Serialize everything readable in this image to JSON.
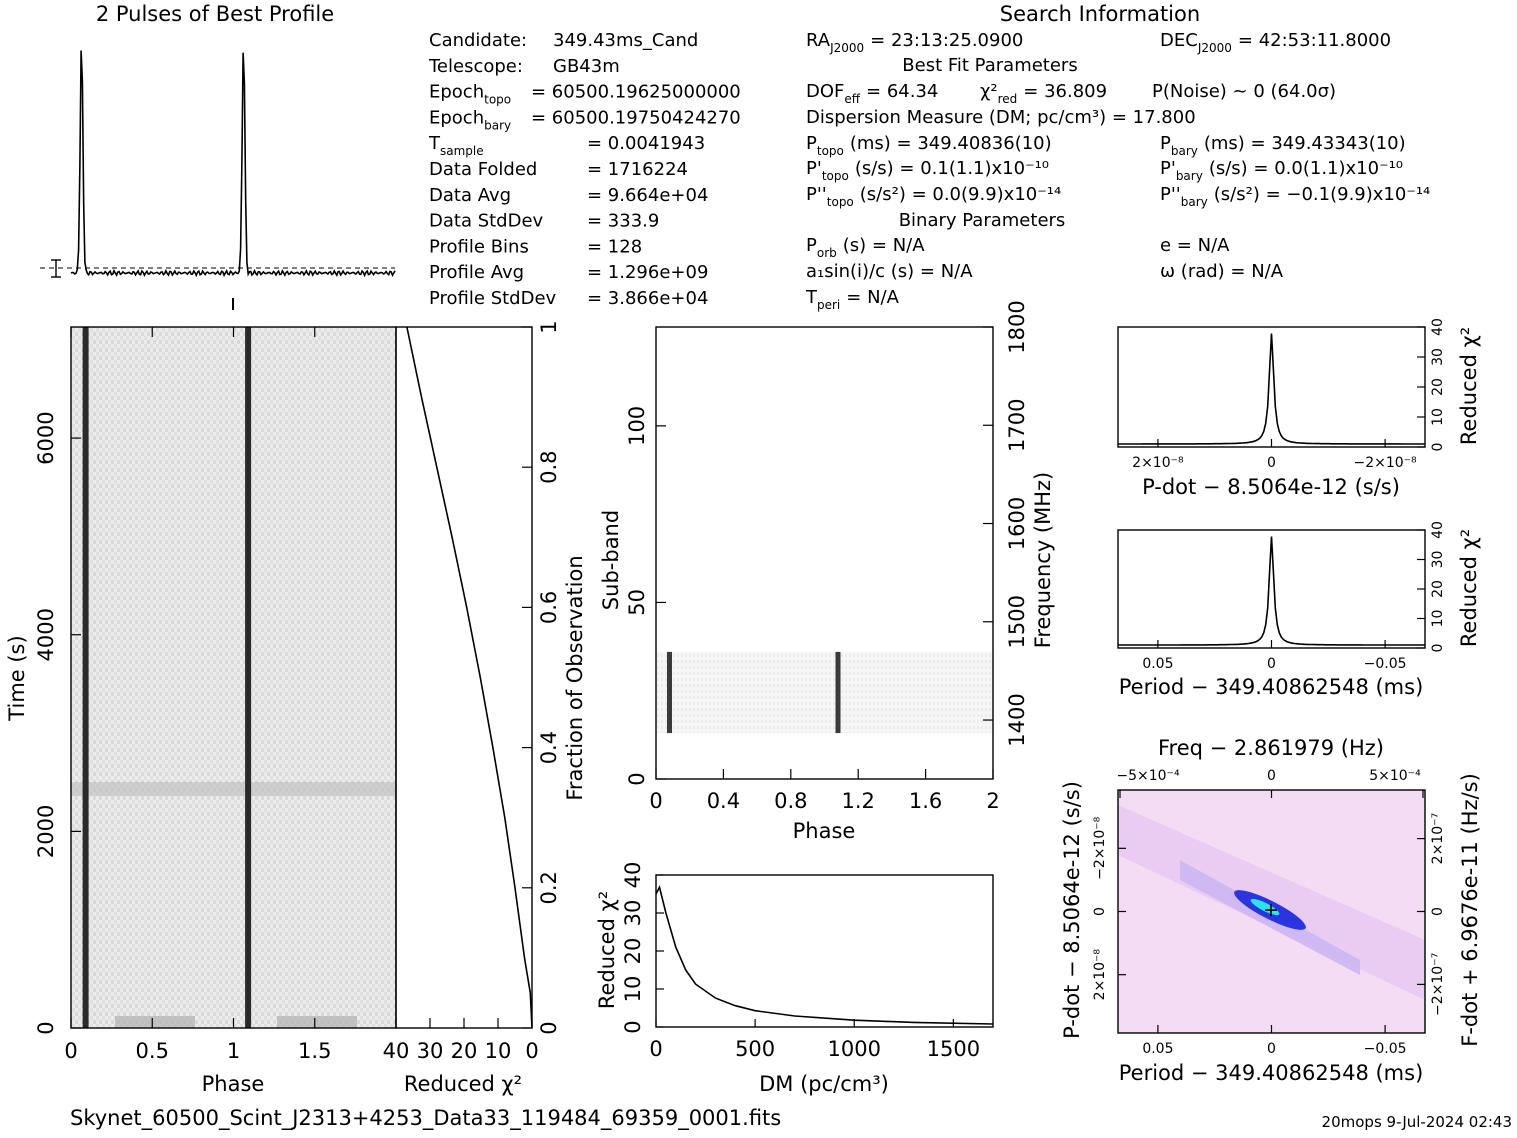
{
  "header": {
    "profile_title": "2 Pulses of Best Profile",
    "search_title": "Search Information",
    "filename": "Skynet_60500_Scint_J2313+4253_Data33_119484_69359_0001.fits",
    "footer_right": "20mops  9-Jul-2024 02:43"
  },
  "info_left": [
    {
      "label": "Candidate:",
      "value": "349.43ms_Cand"
    },
    {
      "label": "Telescope:",
      "value": "GB43m"
    },
    {
      "label": "Epoch",
      "sub": "topo",
      "value": "= 60500.19625000000"
    },
    {
      "label": "Epoch",
      "sub": "bary",
      "value": "= 60500.19750424270"
    },
    {
      "label": "T",
      "sub": "sample",
      "value": "=   0.0041943"
    },
    {
      "label": "Data Folded",
      "value": "=   1716224"
    },
    {
      "label": "Data Avg",
      "value": "=   9.664e+04"
    },
    {
      "label": "Data StdDev",
      "value": "=   333.9"
    },
    {
      "label": "Profile Bins",
      "value": "=   128"
    },
    {
      "label": "Profile Avg",
      "value": "=   1.296e+09"
    },
    {
      "label": "Profile StdDev",
      "value": "=   3.866e+04"
    }
  ],
  "info_mid": {
    "ra": {
      "label": "RA",
      "sub": "J2000",
      "value": "= 23:13:25.0900"
    },
    "best_fit_title": "Best Fit Parameters",
    "dof": {
      "label": "DOF",
      "sub": "eff",
      "value": "= 64.34"
    },
    "chi": {
      "label": "χ²",
      "sub": "red",
      "value": "= 36.809"
    },
    "dm": "Dispersion Measure (DM; pc/cm³) = 17.800",
    "p_topo": {
      "label": "P",
      "sub": "topo",
      "value": "(ms) =   349.40836(10)"
    },
    "pd_topo": {
      "label": "P'",
      "sub": "topo",
      "value": "(s/s) =   0.1(1.1)x10⁻¹⁰"
    },
    "pdd_topo": {
      "label": "P''",
      "sub": "topo",
      "value": "(s/s²) = 0.0(9.9)x10⁻¹⁴"
    },
    "binary_title": "Binary Parameters",
    "porb": {
      "label": "P",
      "sub": "orb",
      "value": "(s) = N/A"
    },
    "a1": "a₁sin(i)/c (s) = N/A",
    "tperi": {
      "label": "T",
      "sub": "peri",
      "value": "= N/A"
    }
  },
  "info_right": {
    "dec": {
      "label": "DEC",
      "sub": "J2000",
      "value": "= 42:53:11.8000"
    },
    "pnoise": "P(Noise) ~ 0    (64.0σ)",
    "p_bary": {
      "label": "P",
      "sub": "bary",
      "value": "(ms) =   349.43343(10)"
    },
    "pd_bary": {
      "label": "P'",
      "sub": "bary",
      "value": "(s/s) = 0.0(1.1)x10⁻¹⁰"
    },
    "pdd_bary": {
      "label": "P''",
      "sub": "bary",
      "value": "(s/s²) = −0.1(9.9)x10⁻¹⁴"
    },
    "ecc": "e = N/A",
    "omega": "ω (rad) = N/A"
  },
  "colors": {
    "ink": "#000000",
    "grey_bg": "#f2f2f2",
    "pink": "#f3d8f3",
    "blue": "#2a35e0",
    "cyan": "#29e6e6"
  },
  "chart_data": [
    {
      "id": "profile",
      "type": "line",
      "title": "2 Pulses of Best Profile",
      "x_range": [
        0,
        2
      ],
      "pulse_phases": [
        0.065,
        1.065
      ],
      "peak_value": 1.0,
      "baseline": 0.0
    },
    {
      "id": "time_phase",
      "type": "heatmap",
      "xlabel": "Phase",
      "ylabel": "Time (s)",
      "xlim": [
        0,
        2
      ],
      "ylim": [
        0,
        7130
      ],
      "x_ticks": [
        "0",
        "0.5",
        "1",
        "1.5"
      ],
      "y_ticks": [
        "0",
        "2000",
        "4000",
        "6000"
      ],
      "pulse_phases": [
        0.09,
        1.09
      ]
    },
    {
      "id": "time_chi",
      "type": "line",
      "xlabel": "Reduced χ²",
      "y2label": "Fraction of Observation",
      "xlim": [
        40,
        0
      ],
      "ylim": [
        0,
        1
      ],
      "x_ticks": [
        "40",
        "30",
        "20",
        "10",
        "0"
      ],
      "y_ticks": [
        "0",
        "0.2",
        "0.4",
        "0.6",
        "0.8",
        "1"
      ],
      "fraction": [
        0,
        0.05,
        0.1,
        0.2,
        0.3,
        0.4,
        0.5,
        0.6,
        0.7,
        0.8,
        0.9,
        1.0
      ],
      "chi2": [
        0,
        0.5,
        2.2,
        5.0,
        8.0,
        11.5,
        15.2,
        19.2,
        23.5,
        28.0,
        32.5,
        36.8
      ]
    },
    {
      "id": "subband",
      "type": "heatmap",
      "xlabel": "Phase",
      "ylabel": "Sub-band",
      "y2label": "Frequency (MHz)",
      "xlim": [
        0,
        2
      ],
      "ylim": [
        0,
        128
      ],
      "x_ticks": [
        "0",
        "0.4",
        "0.8",
        "1.2",
        "1.6",
        "2"
      ],
      "y_ticks": [
        "0",
        "50",
        "100"
      ],
      "y2_ticks": [
        "1400",
        "1500",
        "1600",
        "1700",
        "1800"
      ],
      "band_range": [
        13,
        36
      ],
      "pulse_phases": [
        0.08,
        1.08
      ]
    },
    {
      "id": "dm_curve",
      "type": "line",
      "xlabel": "DM (pc/cm³)",
      "ylabel": "Reduced χ²",
      "xlim": [
        0,
        1700
      ],
      "ylim": [
        0,
        40
      ],
      "x_ticks": [
        "0",
        "500",
        "1000",
        "1500"
      ],
      "y_ticks": [
        "0",
        "10",
        "20",
        "30",
        "40"
      ],
      "x": [
        0,
        17.8,
        50,
        100,
        150,
        200,
        300,
        400,
        500,
        700,
        1000,
        1300,
        1700
      ],
      "y": [
        35,
        36.8,
        30,
        21.0,
        15.0,
        11.3,
        7.6,
        5.6,
        4.3,
        2.9,
        1.8,
        1.2,
        0.8
      ]
    },
    {
      "id": "pdot_chi",
      "type": "line",
      "xlabel": "P-dot − 8.5064e-12 (s/s)",
      "ylabel": "Reduced χ²",
      "x_ticks": [
        "2×10⁻⁸",
        "0",
        "−2×10⁻⁸"
      ],
      "y_ticks": [
        "0",
        "10",
        "20",
        "30",
        "40"
      ],
      "ylim": [
        0,
        40
      ],
      "peak": 36.8
    },
    {
      "id": "period_chi",
      "type": "line",
      "xlabel": "Period − 349.40862548 (ms)",
      "ylabel": "Reduced χ²",
      "x_ticks": [
        "0.05",
        "0",
        "−0.05"
      ],
      "y_ticks": [
        "0",
        "10",
        "20",
        "30",
        "40"
      ],
      "ylim": [
        0,
        40
      ],
      "peak": 36.8
    },
    {
      "id": "ppdot",
      "type": "heatmap",
      "title": "Freq − 2.861979 (Hz)",
      "xlabel": "Period − 349.40862548 (ms)",
      "ylabel": "P-dot − 8.5064e-12 (s/s)",
      "y2label": "F-dot + 6.9676e-11 (Hz/s)",
      "x_ticks": [
        "0.05",
        "0",
        "−0.05"
      ],
      "x2_ticks": [
        "−5×10⁻⁴",
        "0",
        "5×10⁻⁴"
      ],
      "y_ticks": [
        "−2×10⁻⁸",
        "0",
        "2×10⁻⁸"
      ],
      "y2_ticks": [
        "2×10⁻⁷",
        "0",
        "−2×10⁻⁷"
      ]
    }
  ]
}
